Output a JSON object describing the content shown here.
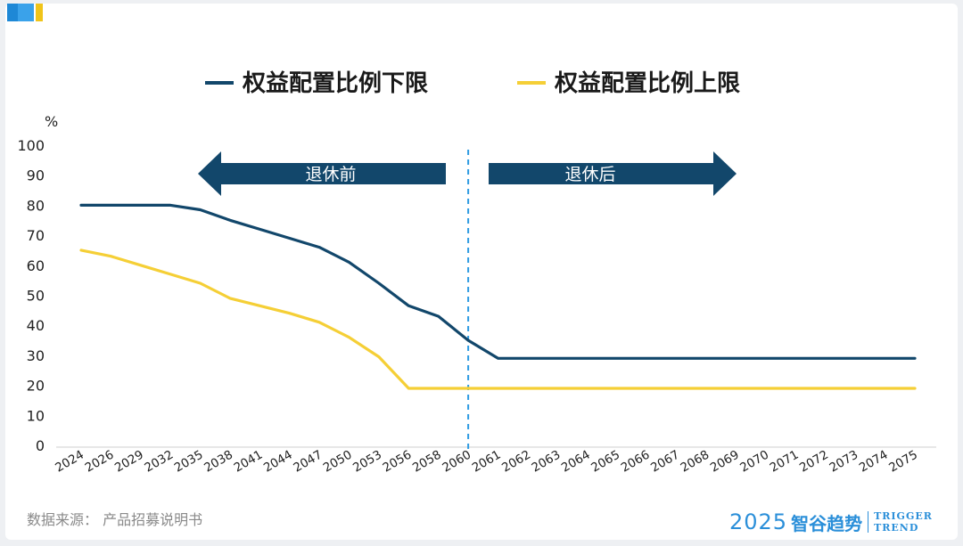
{
  "legend": {
    "lower_label": "权益配置比例下限",
    "upper_label": "权益配置比例上限"
  },
  "colors": {
    "lower": "#12476b",
    "upper": "#f5cf36",
    "arrow": "#12476b",
    "divider": "#2d9be2"
  },
  "annotations": {
    "before": "退休前",
    "after": "退休后"
  },
  "source_text": "数据来源： 产品招募说明书",
  "brand": {
    "year": "2025",
    "name_cn": "智谷趋势",
    "name_en_1": "TRIGGER",
    "name_en_2": "TREND"
  },
  "chart_data": {
    "type": "line",
    "ylabel": "%",
    "ylim": [
      0,
      100
    ],
    "yticks": [
      0,
      10,
      20,
      30,
      40,
      50,
      60,
      70,
      80,
      90,
      100
    ],
    "grid": false,
    "legend_position": "top",
    "categories": [
      "2024",
      "2026",
      "2029",
      "2032",
      "2035",
      "2038",
      "2041",
      "2044",
      "2047",
      "2050",
      "2053",
      "2056",
      "2058",
      "2060",
      "2061",
      "2062",
      "2063",
      "2064",
      "2065",
      "2066",
      "2067",
      "2068",
      "2069",
      "2070",
      "2071",
      "2072",
      "2073",
      "2074",
      "2075"
    ],
    "divider_at": "2060",
    "series": [
      {
        "name": "权益配置比例下限",
        "values": [
          80,
          80,
          80,
          80,
          78.5,
          75,
          72,
          69,
          66,
          61,
          54,
          46.5,
          43,
          35,
          29,
          29,
          29,
          29,
          29,
          29,
          29,
          29,
          29,
          29,
          29,
          29,
          29,
          29,
          29
        ]
      },
      {
        "name": "权益配置比例上限",
        "values": [
          65,
          63,
          60,
          57,
          54,
          49,
          46.5,
          44,
          41,
          36,
          29.5,
          19,
          19,
          19,
          19,
          19,
          19,
          19,
          19,
          19,
          19,
          19,
          19,
          19,
          19,
          19,
          19,
          19,
          19
        ]
      }
    ]
  }
}
